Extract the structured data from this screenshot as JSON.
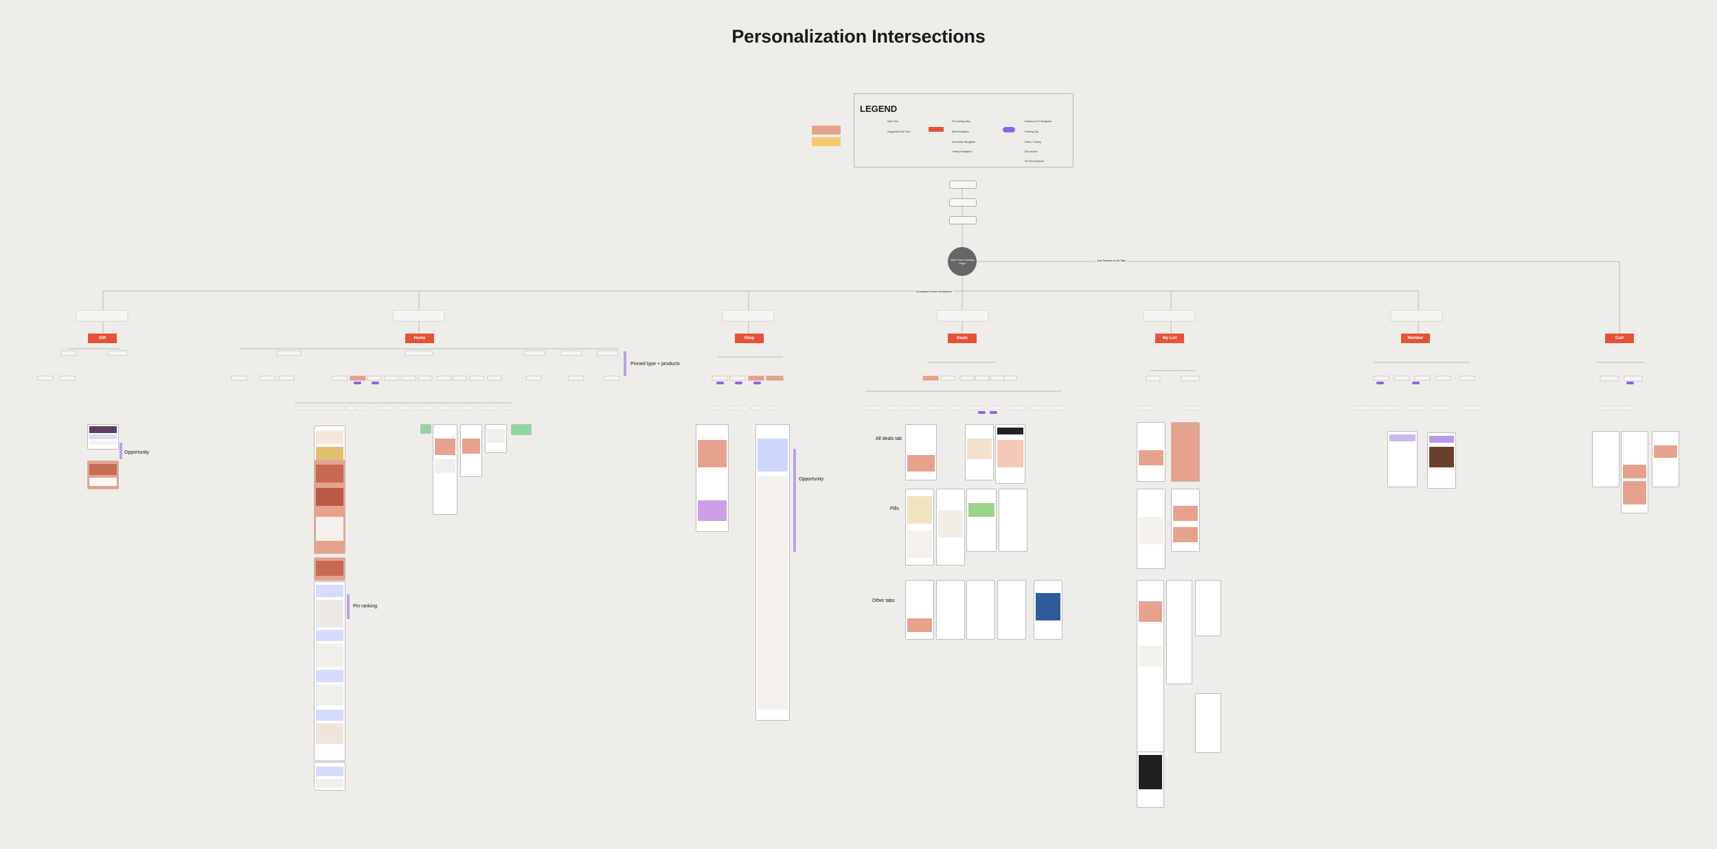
{
  "title": "Personalization Intersections",
  "legend": {
    "title": "LEGEND",
    "items": [
      "Main Flow",
      "Suggested Auth Flow",
      "Pre-existing Step",
      "Main Navigation",
      "Secondary Navigation",
      "Tertiary Navigation",
      "Subflow or D2 Navigation",
      "Pending Tag",
      "Filters / Sorting",
      "Sub-section",
      "D2 Flow Endpoint"
    ]
  },
  "root": {
    "label": "Start From Landing Page"
  },
  "tabs": [
    "Gift",
    "Home",
    "Shop",
    "Deals",
    "My List",
    "Member",
    "Cart"
  ],
  "labels": {
    "pinned": "Pinned type + products",
    "opportunity_left": "Opportunity",
    "opportunity_right": "Opportunity",
    "pin_ranking": "Pin ranking",
    "all_deals_tab": "All deals tab",
    "pills": "Pills",
    "other_tabs": "Other tabs",
    "small_center": "Ecosystem Home Ecosystem",
    "side_note": "Just Present on all Tabs"
  },
  "colors": {
    "accent": "#e45336",
    "salmon": "#e7a28d",
    "yellow": "#f5c96e",
    "purple": "#b9a2ec",
    "lavender": "#cfd6fb",
    "green": "#8fd7a0"
  }
}
